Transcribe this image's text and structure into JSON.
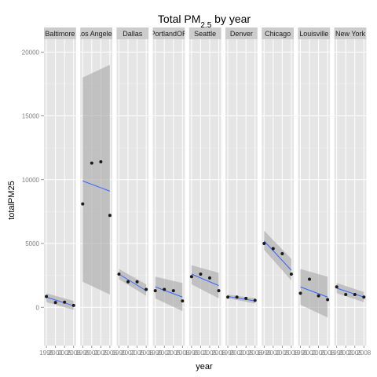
{
  "chart_data": {
    "type": "scatter",
    "title_main": "Total PM",
    "title_sub": "2.5",
    "title_tail": " by year",
    "xlabel": "year",
    "ylabel": "totalPM25",
    "ylim": [
      -3000,
      21000
    ],
    "xlim": [
      1998.2,
      2008.8
    ],
    "yticks": [
      0,
      5000,
      10000,
      15000,
      20000
    ],
    "ytick_labels": [
      "0",
      "5000",
      "10000",
      "15000",
      "20000"
    ],
    "xticks": [
      1999,
      2002,
      2005,
      2008
    ],
    "xtick_labels": [
      "1999",
      "2002",
      "2005",
      "2008"
    ],
    "grid": true,
    "panels": [
      {
        "name": "Baltimore",
        "x": [
          1999,
          2002,
          2005,
          2008
        ],
        "y": [
          850,
          380,
          400,
          150
        ],
        "fit": [
          800,
          120
        ],
        "band_low": [
          400,
          -200
        ],
        "band_high": [
          1100,
          500
        ]
      },
      {
        "name": "Los Angeles",
        "x": [
          1999,
          2002,
          2005,
          2008
        ],
        "y": [
          8100,
          11300,
          11400,
          7200
        ],
        "fit": [
          9900,
          9100
        ],
        "band_low": [
          2000,
          1000
        ],
        "band_high": [
          18000,
          19000
        ]
      },
      {
        "name": "Dallas",
        "x": [
          1999,
          2002,
          2005,
          2008
        ],
        "y": [
          2600,
          2000,
          2000,
          1400
        ],
        "fit": [
          2600,
          1300
        ],
        "band_low": [
          2200,
          900
        ],
        "band_high": [
          3000,
          1800
        ]
      },
      {
        "name": "PortlandOR",
        "x": [
          1999,
          2002,
          2005,
          2008
        ],
        "y": [
          1300,
          1400,
          1300,
          500
        ],
        "fit": [
          1600,
          800
        ],
        "band_low": [
          700,
          -300
        ],
        "band_high": [
          2400,
          1900
        ]
      },
      {
        "name": "Seattle",
        "x": [
          1999,
          2002,
          2005,
          2008
        ],
        "y": [
          2400,
          2600,
          2300,
          1300
        ],
        "fit": [
          2600,
          1700
        ],
        "band_low": [
          1800,
          700
        ],
        "band_high": [
          3300,
          2700
        ]
      },
      {
        "name": "Denver",
        "x": [
          1999,
          2002,
          2005,
          2008
        ],
        "y": [
          800,
          800,
          700,
          550
        ],
        "fit": [
          850,
          500
        ],
        "band_low": [
          700,
          300
        ],
        "band_high": [
          1000,
          700
        ]
      },
      {
        "name": "Chicago",
        "x": [
          1999,
          2002,
          2005,
          2008
        ],
        "y": [
          5000,
          4600,
          4200,
          2600
        ],
        "fit": [
          5200,
          2900
        ],
        "band_low": [
          4500,
          2100
        ],
        "band_high": [
          6000,
          3800
        ]
      },
      {
        "name": "Louisville",
        "x": [
          1999,
          2002,
          2005,
          2008
        ],
        "y": [
          1100,
          2200,
          900,
          600
        ],
        "fit": [
          1600,
          800
        ],
        "band_low": [
          200,
          -800
        ],
        "band_high": [
          3000,
          2400
        ]
      },
      {
        "name": "New York",
        "x": [
          1999,
          2002,
          2005,
          2008
        ],
        "y": [
          1600,
          1000,
          1000,
          800
        ],
        "fit": [
          1500,
          800
        ],
        "band_low": [
          1100,
          400
        ],
        "band_high": [
          1900,
          1200
        ]
      }
    ],
    "colors": {
      "panel_bg": "#e5e5e5",
      "grid_major": "#ffffff",
      "strip_bg": "#cccccc",
      "point": "#1a1a1a",
      "fit_line": "#3366ff",
      "band": "#a6a6a6"
    }
  }
}
